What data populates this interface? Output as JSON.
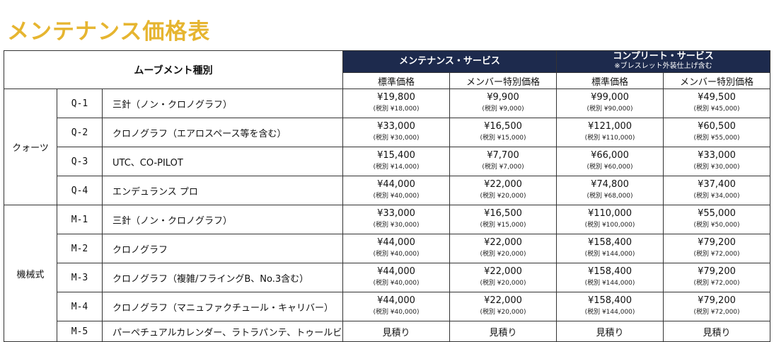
{
  "title": "メンテナンス価格表",
  "header": {
    "movement_type": "ムーブメント種別",
    "maintenance": "メンテナンス・サービス",
    "complete": "コンプリート・サービス",
    "complete_note": "※ブレスレット外装仕上げ含む",
    "standard_price": "標準価格",
    "member_price": "メンバー特別価格"
  },
  "groups": [
    {
      "name": "クォーツ",
      "rows": [
        {
          "code": "Q-1",
          "model": "三針（ノン・クロノグラフ）",
          "prices": [
            [
              "¥19,800",
              "(税別 ¥18,000)"
            ],
            [
              "¥9,900",
              "(税別 ¥9,000)"
            ],
            [
              "¥99,000",
              "(税別 ¥90,000)"
            ],
            [
              "¥49,500",
              "(税別 ¥45,000)"
            ]
          ]
        },
        {
          "code": "Q-2",
          "model": "クロノグラフ（エアロスペース等を含む）",
          "prices": [
            [
              "¥33,000",
              "(税別 ¥30,000)"
            ],
            [
              "¥16,500",
              "(税別 ¥15,000)"
            ],
            [
              "¥121,000",
              "(税別 ¥110,000)"
            ],
            [
              "¥60,500",
              "(税別 ¥55,000)"
            ]
          ]
        },
        {
          "code": "Q-3",
          "model": "UTC、CO-PILOT",
          "prices": [
            [
              "¥15,400",
              "(税別 ¥14,000)"
            ],
            [
              "¥7,700",
              "(税別 ¥7,000)"
            ],
            [
              "¥66,000",
              "(税別 ¥60,000)"
            ],
            [
              "¥33,000",
              "(税別 ¥30,000)"
            ]
          ]
        },
        {
          "code": "Q-4",
          "model": "エンデュランス プロ",
          "prices": [
            [
              "¥44,000",
              "(税別 ¥40,000)"
            ],
            [
              "¥22,000",
              "(税別 ¥20,000)"
            ],
            [
              "¥74,800",
              "(税別 ¥68,000)"
            ],
            [
              "¥37,400",
              "(税別 ¥34,000)"
            ]
          ]
        }
      ]
    },
    {
      "name": "機械式",
      "rows": [
        {
          "code": "M-1",
          "model": "三針（ノン・クロノグラフ）",
          "prices": [
            [
              "¥33,000",
              "(税別 ¥30,000)"
            ],
            [
              "¥16,500",
              "(税別 ¥15,000)"
            ],
            [
              "¥110,000",
              "(税別 ¥100,000)"
            ],
            [
              "¥55,000",
              "(税別 ¥50,000)"
            ]
          ]
        },
        {
          "code": "M-2",
          "model": "クロノグラフ",
          "prices": [
            [
              "¥44,000",
              "(税別 ¥40,000)"
            ],
            [
              "¥22,000",
              "(税別 ¥20,000)"
            ],
            [
              "¥158,400",
              "(税別 ¥144,000)"
            ],
            [
              "¥79,200",
              "(税別 ¥72,000)"
            ]
          ]
        },
        {
          "code": "M-3",
          "model": "クロノグラフ（複雑/フライングB、No.3含む）",
          "prices": [
            [
              "¥44,000",
              "(税別 ¥40,000)"
            ],
            [
              "¥22,000",
              "(税別 ¥20,000)"
            ],
            [
              "¥158,400",
              "(税別 ¥144,000)"
            ],
            [
              "¥79,200",
              "(税別 ¥72,000)"
            ]
          ]
        },
        {
          "code": "M-4",
          "model": "クロノグラフ（マニュファクチュール・キャリバー）",
          "prices": [
            [
              "¥44,000",
              "(税別 ¥40,000)"
            ],
            [
              "¥22,000",
              "(税別 ¥20,000)"
            ],
            [
              "¥158,400",
              "(税別 ¥144,000)"
            ],
            [
              "¥79,200",
              "(税別 ¥72,000)"
            ]
          ]
        },
        {
          "code": "M-5",
          "model": "パーペチュアルカレンダー、ラトラパンテ、トゥールビヨン",
          "estimate": [
            "見積り",
            "見積り",
            "見積り",
            "見積り"
          ]
        }
      ]
    }
  ]
}
